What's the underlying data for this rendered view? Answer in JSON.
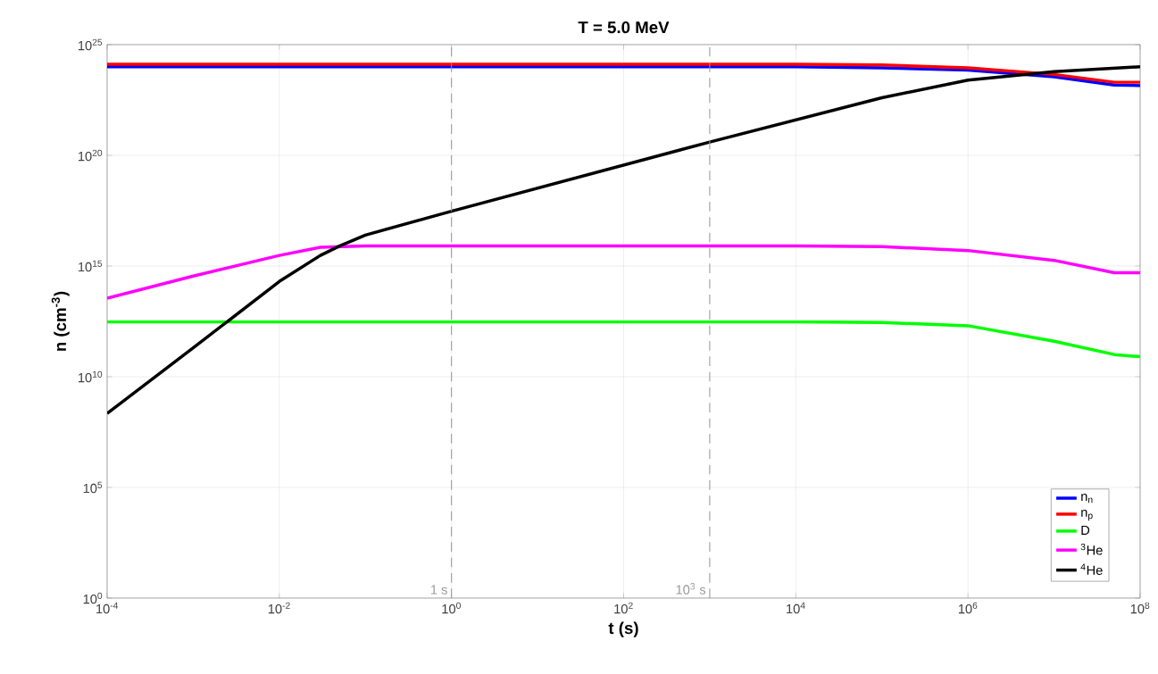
{
  "chart_data": {
    "type": "line",
    "title": "T = 5.0 MeV",
    "xlabel": "t (s)",
    "ylabel": "n  (cm$^{-3}$)",
    "log": "xy",
    "grid": true,
    "legend": "bottom right",
    "line_style": "solid",
    "marker": "none",
    "xlim": [
      0.0001,
      100000000
    ],
    "ylim": [
      1,
      1e+25
    ],
    "xticks": [
      {
        "value": 0.0001,
        "label": "10$^{-4}$"
      },
      {
        "value": 0.01,
        "label": "10$^{-2}$"
      },
      {
        "value": 1,
        "label": "10$^{0}$"
      },
      {
        "value": 100,
        "label": "10$^{2}$"
      },
      {
        "value": 10000,
        "label": "10$^{4}$"
      },
      {
        "value": 1000000,
        "label": "10$^{6}$"
      },
      {
        "value": 100000000,
        "label": "10$^{8}$"
      }
    ],
    "yticks": [
      {
        "value": 1,
        "label": "10$^{0}$"
      },
      {
        "value": 100000,
        "label": "10$^{5}$"
      },
      {
        "value": 10000000000.0,
        "label": "10$^{10}$"
      },
      {
        "value": 1000000000000000.0,
        "label": "10$^{15}$"
      },
      {
        "value": 1e+20,
        "label": "10$^{20}$"
      },
      {
        "value": 1e+25,
        "label": "10$^{25}$"
      }
    ],
    "ref_lines": [
      {
        "axis": "x",
        "value": 1,
        "label": "1 s",
        "color": "#999999",
        "line_style": "dashed"
      },
      {
        "axis": "x",
        "value": 1000,
        "label": "10$^{3}$ s",
        "color": "#999999",
        "line_style": "dashed"
      }
    ],
    "series": [
      {
        "name": "n$_{n}$",
        "color": "#0000ff",
        "x": [
          0.0001,
          1,
          10000,
          100000,
          1000000,
          10000000,
          50000000,
          100000000
        ],
        "values": [
          1e+24,
          1e+24,
          1e+24,
          9e+23,
          7e+23,
          3.5e+23,
          1.5e+23,
          1.4e+23
        ]
      },
      {
        "name": "n$_{p}$",
        "color": "#ff0000",
        "x": [
          0.0001,
          1,
          10000,
          100000,
          1000000,
          10000000,
          50000000,
          100000000
        ],
        "values": [
          1.3e+24,
          1.3e+24,
          1.3e+24,
          1.2e+24,
          9e+23,
          4.5e+23,
          2e+23,
          2e+23
        ]
      },
      {
        "name": "D",
        "color": "#00ff00",
        "x": [
          0.0001,
          1,
          10000,
          100000,
          1000000,
          10000000,
          50000000,
          100000000
        ],
        "values": [
          3000000000000.0,
          3000000000000.0,
          3000000000000.0,
          2800000000000.0,
          2000000000000.0,
          400000000000.0,
          100000000000.0,
          80000000000.0
        ]
      },
      {
        "name": "$^{3}$He",
        "color": "#ff00ff",
        "x": [
          0.0001,
          0.001,
          0.01,
          0.03,
          0.1,
          1,
          10000,
          100000,
          1000000,
          10000000,
          50000000,
          100000000
        ],
        "values": [
          35000000000000.0,
          350000000000000.0,
          3000000000000000.0,
          7000000000000000.0,
          8000000000000000.0,
          8000000000000000.0,
          8000000000000000.0,
          7500000000000000.0,
          5000000000000000.0,
          1800000000000000.0,
          500000000000000.0,
          500000000000000.0
        ]
      },
      {
        "name": "$^{4}$He",
        "color": "#000000",
        "x": [
          0.0001,
          0.001,
          0.01,
          0.03,
          0.05,
          0.1,
          1,
          1000,
          10000,
          100000,
          1000000,
          10000000,
          100000000
        ],
        "values": [
          220000000.0,
          200000000000.0,
          200000000000000.0,
          3000000000000000.0,
          8000000000000000.0,
          2.5e+16,
          3e+17,
          4e+20,
          4e+21,
          4e+22,
          2.5e+23,
          6e+23,
          1e+24
        ]
      }
    ]
  }
}
